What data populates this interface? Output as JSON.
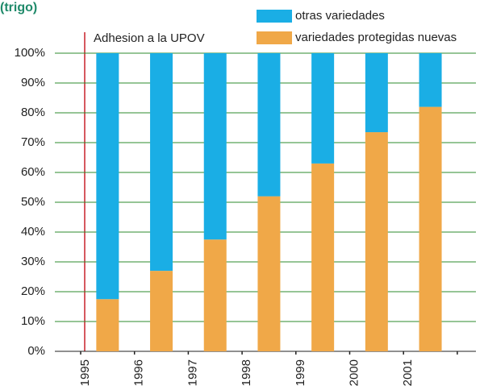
{
  "chart_data": {
    "type": "stacked_bar",
    "title": "(trigo)",
    "annotation": "Adhesion a la UPOV",
    "categories": [
      "1995",
      "1996",
      "1997",
      "1998",
      "1999",
      "2000",
      "2001"
    ],
    "series": [
      {
        "name": "variedades protegidas nuevas",
        "color": "#f0a848",
        "values": [
          17.5,
          27,
          37.5,
          52,
          63,
          73.5,
          82
        ]
      },
      {
        "name": "otras variedades",
        "color": "#1aaee5",
        "values": [
          82.5,
          73,
          62.5,
          48,
          37,
          26.5,
          18
        ]
      }
    ],
    "ylim": [
      0,
      100
    ],
    "yticks": [
      {
        "value": 0,
        "label": "0%"
      },
      {
        "value": 10,
        "label": "10%"
      },
      {
        "value": 20,
        "label": "20%"
      },
      {
        "value": 30,
        "label": "30%"
      },
      {
        "value": 40,
        "label": "40%"
      },
      {
        "value": 50,
        "label": "50%"
      },
      {
        "value": 60,
        "label": "60%"
      },
      {
        "value": 70,
        "label": "70%"
      },
      {
        "value": 80,
        "label": "80%"
      },
      {
        "value": 90,
        "label": "90%"
      },
      {
        "value": 100,
        "label": "100%"
      }
    ],
    "grid": true
  }
}
